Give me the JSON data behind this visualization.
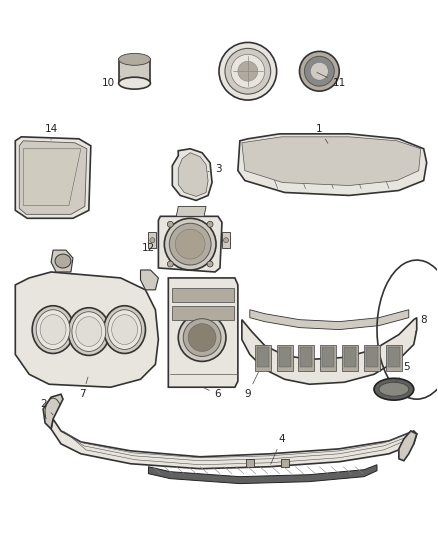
{
  "bg_color": "#ffffff",
  "line_color": "#333333",
  "label_color": "#222222",
  "fig_width": 4.38,
  "fig_height": 5.33,
  "dpi": 100,
  "fill_light": "#e8e4de",
  "fill_mid": "#d0cbc2",
  "fill_dark": "#b0ab9e",
  "fill_very_dark": "#606060",
  "label_fontsize": 7.5,
  "arrow_lw": 0.5
}
